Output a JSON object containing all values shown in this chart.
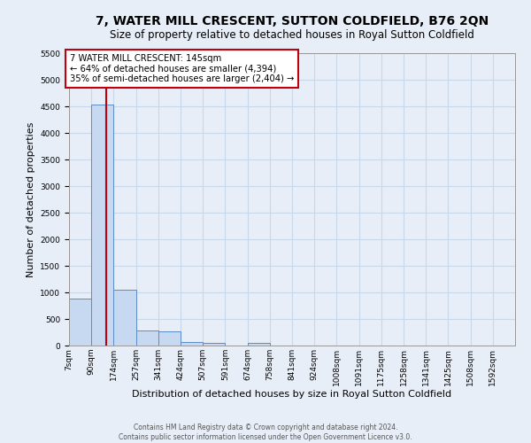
{
  "title": "7, WATER MILL CRESCENT, SUTTON COLDFIELD, B76 2QN",
  "subtitle": "Size of property relative to detached houses in Royal Sutton Coldfield",
  "xlabel": "Distribution of detached houses by size in Royal Sutton Coldfield",
  "ylabel": "Number of detached properties",
  "footer1": "Contains HM Land Registry data © Crown copyright and database right 2024.",
  "footer2": "Contains public sector information licensed under the Open Government Licence v3.0.",
  "bar_edges": [
    7,
    90,
    174,
    257,
    341,
    424,
    507,
    591,
    674,
    758,
    841,
    924,
    1008,
    1091,
    1175,
    1258,
    1341,
    1425,
    1508,
    1592,
    1675
  ],
  "bar_values": [
    880,
    4540,
    1050,
    290,
    270,
    70,
    50,
    0,
    50,
    0,
    0,
    0,
    0,
    0,
    0,
    0,
    0,
    0,
    0,
    0
  ],
  "bar_color": "#c6d9f0",
  "bar_edge_color": "#5b8cc5",
  "property_size": 145,
  "property_line_color": "#c0000b",
  "annotation_text": "7 WATER MILL CRESCENT: 145sqm\n← 64% of detached houses are smaller (4,394)\n35% of semi-detached houses are larger (2,404) →",
  "annotation_box_color": "white",
  "annotation_box_edge_color": "#c0000b",
  "ylim": [
    0,
    5500
  ],
  "yticks": [
    0,
    500,
    1000,
    1500,
    2000,
    2500,
    3000,
    3500,
    4000,
    4500,
    5000,
    5500
  ],
  "grid_color": "#c8d8e8",
  "background_color": "#e8eef8",
  "title_fontsize": 10,
  "subtitle_fontsize": 8.5,
  "tick_label_fontsize": 6.5,
  "axis_label_fontsize": 8
}
